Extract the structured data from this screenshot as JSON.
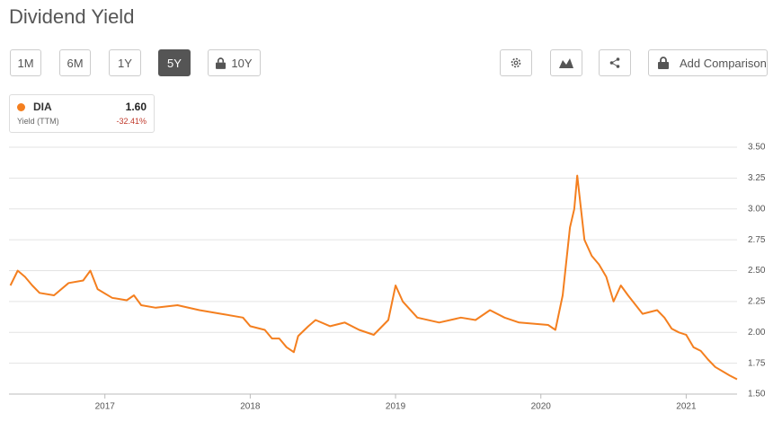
{
  "header": {
    "title": "Dividend Yield"
  },
  "toolbar": {
    "ranges": [
      "1M",
      "6M",
      "1Y",
      "5Y",
      "10Y"
    ],
    "active_index": 3,
    "locked_index": 4,
    "add_comparison": "Add Comparison"
  },
  "legend": {
    "ticker": "DIA",
    "value": "1.60",
    "subtitle": "Yield (TTM)",
    "change": "-32.41%"
  },
  "chart_data": {
    "type": "line",
    "x": [
      2016.35,
      2016.4,
      2016.45,
      2016.5,
      2016.55,
      2016.65,
      2016.75,
      2016.85,
      2016.9,
      2016.95,
      2017.05,
      2017.15,
      2017.2,
      2017.25,
      2017.35,
      2017.5,
      2017.65,
      2017.8,
      2017.95,
      2018.0,
      2018.1,
      2018.15,
      2018.2,
      2018.25,
      2018.3,
      2018.33,
      2018.4,
      2018.45,
      2018.55,
      2018.65,
      2018.75,
      2018.85,
      2018.95,
      2019.0,
      2019.05,
      2019.15,
      2019.3,
      2019.45,
      2019.55,
      2019.65,
      2019.75,
      2019.85,
      2019.95,
      2020.05,
      2020.1,
      2020.15,
      2020.2,
      2020.23,
      2020.25,
      2020.3,
      2020.35,
      2020.4,
      2020.45,
      2020.5,
      2020.55,
      2020.6,
      2020.7,
      2020.8,
      2020.85,
      2020.9,
      2020.95,
      2021.0,
      2021.05,
      2021.1,
      2021.15,
      2021.2,
      2021.3,
      2021.35
    ],
    "series": [
      {
        "name": "DIA",
        "color": "#f47f1f",
        "values": [
          2.38,
          2.5,
          2.45,
          2.38,
          2.32,
          2.3,
          2.4,
          2.42,
          2.5,
          2.35,
          2.28,
          2.26,
          2.3,
          2.22,
          2.2,
          2.22,
          2.18,
          2.15,
          2.12,
          2.05,
          2.02,
          1.95,
          1.95,
          1.88,
          1.84,
          1.97,
          2.05,
          2.1,
          2.05,
          2.08,
          2.02,
          1.98,
          2.1,
          2.38,
          2.25,
          2.12,
          2.08,
          2.12,
          2.1,
          2.18,
          2.12,
          2.08,
          2.07,
          2.06,
          2.02,
          2.3,
          2.85,
          3.0,
          3.27,
          2.75,
          2.62,
          2.55,
          2.45,
          2.25,
          2.38,
          2.3,
          2.15,
          2.18,
          2.12,
          2.03,
          2.0,
          1.98,
          1.88,
          1.85,
          1.78,
          1.72,
          1.65,
          1.62
        ]
      }
    ],
    "xlim": [
      2016.34,
      2021.35
    ],
    "xticks": [
      2017,
      2018,
      2019,
      2020,
      2021
    ],
    "ylim": [
      1.5,
      3.5
    ],
    "yticks": [
      {
        "value": 1.5,
        "label": "1.50"
      },
      {
        "value": 1.75,
        "label": "1.75"
      },
      {
        "value": 2.0,
        "label": "2.00"
      },
      {
        "value": 2.25,
        "label": "2.25"
      },
      {
        "value": 2.5,
        "label": "2.50"
      },
      {
        "value": 2.75,
        "label": "2.75"
      },
      {
        "value": 3.0,
        "label": "3.00"
      },
      {
        "value": 3.25,
        "label": "3.25"
      },
      {
        "value": 3.5,
        "label": "3.50"
      }
    ],
    "grid": true
  }
}
